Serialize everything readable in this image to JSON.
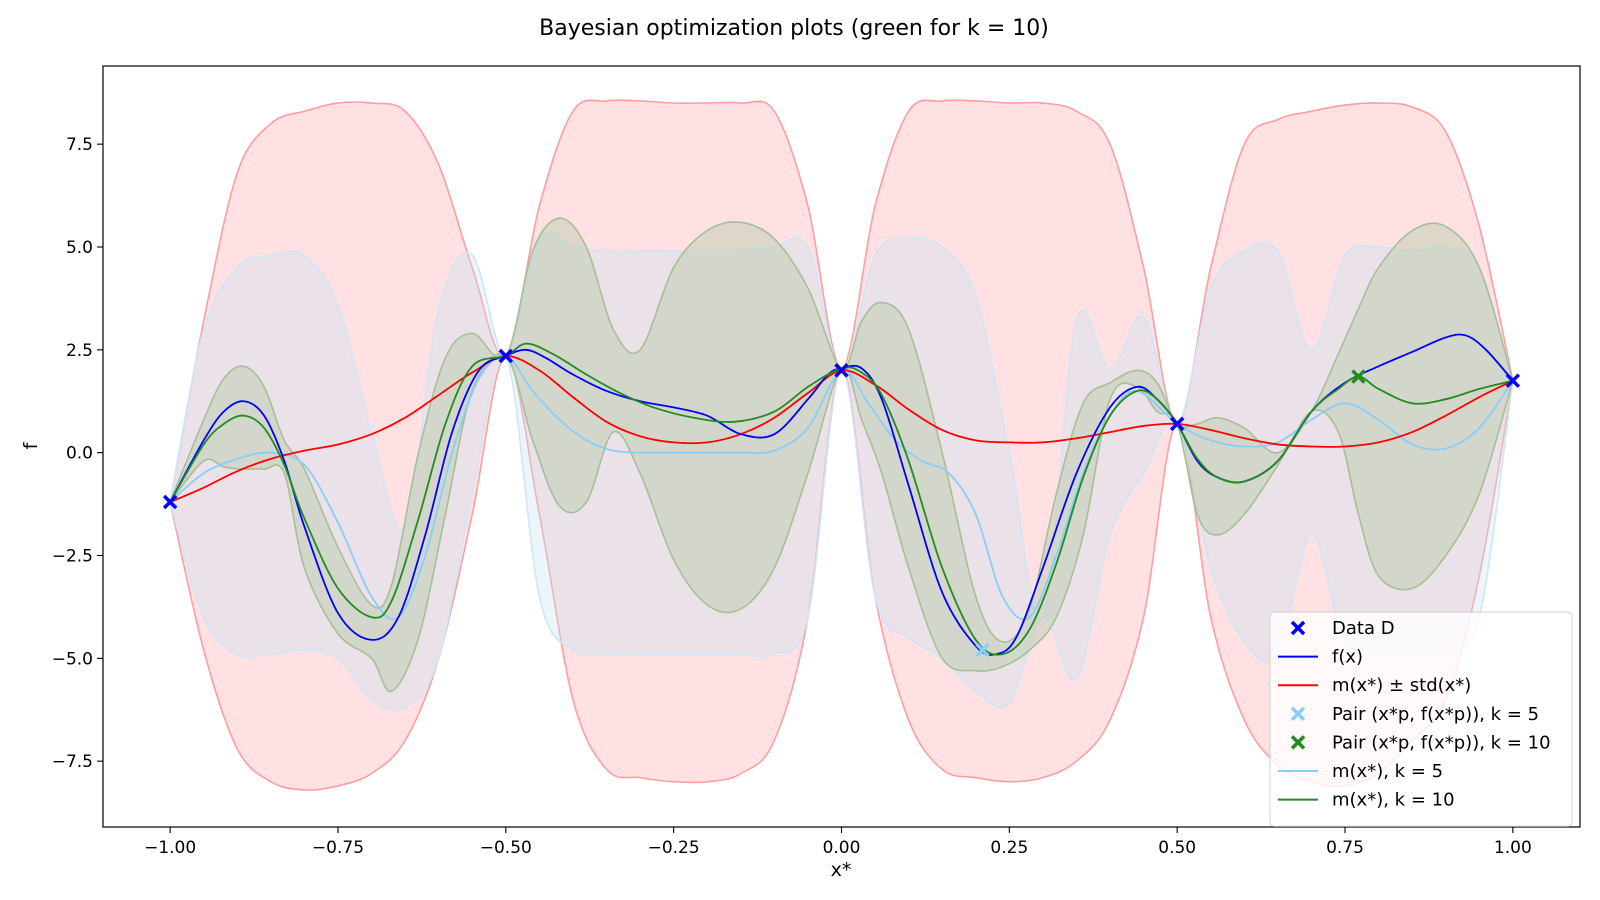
{
  "chart_data": {
    "type": "line",
    "title": "Bayesian optimization plots (green for k = 10)",
    "xlabel": "x*",
    "ylabel": "f",
    "xlim": [
      -1.1,
      1.1
    ],
    "ylim": [
      -9.1,
      9.4
    ],
    "xticks": [
      -1.0,
      -0.75,
      -0.5,
      -0.25,
      0.0,
      0.25,
      0.5,
      0.75,
      1.0
    ],
    "xtick_labels": [
      "−1.00",
      "−0.75",
      "−0.50",
      "−0.25",
      "0.00",
      "0.25",
      "0.50",
      "0.75",
      "1.00"
    ],
    "yticks": [
      -7.5,
      -5.0,
      -2.5,
      0.0,
      2.5,
      5.0,
      7.5
    ],
    "ytick_labels": [
      "−7.5",
      "−5.0",
      "−2.5",
      "0.0",
      "2.5",
      "5.0",
      "7.5"
    ],
    "grid": false,
    "legend_placement": "lower-right",
    "colors": {
      "data": "#0000ff",
      "f": "#0000ff",
      "mean": "#ff0000",
      "band": "#ffb3b8",
      "k5": "#87cefa",
      "k10": "#228b22"
    },
    "legend": [
      {
        "label": "Data D",
        "marker": "x",
        "color": "#0000ff"
      },
      {
        "label": "f(x)",
        "marker": "line",
        "color": "#0000ff"
      },
      {
        "label": "m(x*) ± std(x*)",
        "marker": "line",
        "color": "#ff0000"
      },
      {
        "label": "Pair (x*p, f(x*p)), k = 5",
        "marker": "x",
        "color": "#87cefa"
      },
      {
        "label": "Pair (x*p, f(x*p)), k = 10",
        "marker": "x",
        "color": "#228b22"
      },
      {
        "label": "m(x*), k = 5",
        "marker": "line",
        "color": "#87cefa"
      },
      {
        "label": "m(x*), k = 10",
        "marker": "line",
        "color": "#228b22"
      }
    ],
    "data_points": {
      "x": [
        -1.0,
        -0.5,
        0.0,
        0.5,
        1.0
      ],
      "y": [
        -1.2,
        2.35,
        2.0,
        0.7,
        1.75
      ]
    },
    "pair_k5": {
      "x": [
        0.21
      ],
      "y": [
        -4.8
      ]
    },
    "pair_k10": {
      "x": [
        0.77
      ],
      "y": [
        1.85
      ]
    },
    "series": [
      {
        "name": "f(x)",
        "x": [
          -1.0,
          -0.95,
          -0.92,
          -0.89,
          -0.86,
          -0.83,
          -0.8,
          -0.75,
          -0.7,
          -0.66,
          -0.62,
          -0.58,
          -0.54,
          -0.5,
          -0.47,
          -0.44,
          -0.4,
          -0.35,
          -0.3,
          -0.25,
          -0.2,
          -0.15,
          -0.1,
          -0.05,
          -0.02,
          0.0,
          0.03,
          0.06,
          0.1,
          0.15,
          0.2,
          0.23,
          0.26,
          0.3,
          0.35,
          0.4,
          0.44,
          0.47,
          0.5,
          0.53,
          0.56,
          0.6,
          0.65,
          0.7,
          0.75,
          0.8,
          0.85,
          0.9,
          0.93,
          0.96,
          1.0
        ],
        "y": [
          -1.2,
          0.3,
          1.0,
          1.25,
          0.9,
          -0.2,
          -1.8,
          -3.9,
          -4.55,
          -4.0,
          -2.0,
          0.5,
          2.0,
          2.35,
          2.5,
          2.3,
          1.9,
          1.5,
          1.25,
          1.1,
          0.9,
          0.45,
          0.45,
          1.3,
          1.9,
          2.05,
          2.05,
          1.3,
          -0.8,
          -3.4,
          -4.7,
          -4.9,
          -4.5,
          -2.8,
          -0.5,
          1.1,
          1.6,
          1.3,
          0.7,
          -0.2,
          -0.6,
          -0.7,
          -0.2,
          1.0,
          1.7,
          2.1,
          2.45,
          2.8,
          2.85,
          2.5,
          1.75
        ]
      },
      {
        "name": "m(x*) ± std(x*)",
        "x": [
          -1.0,
          -0.95,
          -0.9,
          -0.85,
          -0.8,
          -0.75,
          -0.7,
          -0.65,
          -0.6,
          -0.55,
          -0.5,
          -0.45,
          -0.4,
          -0.35,
          -0.3,
          -0.25,
          -0.2,
          -0.15,
          -0.1,
          -0.05,
          0.0,
          0.05,
          0.1,
          0.15,
          0.2,
          0.25,
          0.3,
          0.35,
          0.4,
          0.45,
          0.5,
          0.55,
          0.6,
          0.65,
          0.7,
          0.75,
          0.8,
          0.85,
          0.9,
          0.95,
          1.0
        ],
        "y": [
          -1.2,
          -0.85,
          -0.45,
          -0.15,
          0.05,
          0.2,
          0.45,
          0.85,
          1.4,
          1.95,
          2.35,
          2.0,
          1.35,
          0.75,
          0.4,
          0.25,
          0.25,
          0.45,
          0.85,
          1.45,
          2.0,
          1.65,
          1.05,
          0.55,
          0.3,
          0.25,
          0.25,
          0.35,
          0.5,
          0.65,
          0.7,
          0.55,
          0.35,
          0.2,
          0.15,
          0.15,
          0.25,
          0.5,
          0.9,
          1.35,
          1.75
        ],
        "upper": [
          -1.2,
          3.2,
          6.8,
          8.0,
          8.3,
          8.5,
          8.5,
          8.3,
          7.0,
          4.5,
          2.35,
          6.0,
          8.3,
          8.55,
          8.55,
          8.5,
          8.5,
          8.5,
          8.3,
          6.0,
          2.05,
          6.0,
          8.3,
          8.55,
          8.55,
          8.5,
          8.5,
          8.3,
          7.5,
          4.5,
          0.7,
          4.5,
          7.5,
          8.1,
          8.3,
          8.45,
          8.5,
          8.4,
          7.8,
          5.5,
          1.75
        ],
        "lower": [
          -1.2,
          -4.8,
          -7.2,
          -8.0,
          -8.2,
          -8.1,
          -7.8,
          -7.0,
          -5.0,
          -1.5,
          2.35,
          -1.5,
          -6.0,
          -7.7,
          -7.9,
          -8.0,
          -8.0,
          -7.8,
          -7.0,
          -4.0,
          2.05,
          -3.5,
          -6.5,
          -7.7,
          -7.9,
          -8.0,
          -7.9,
          -7.5,
          -6.5,
          -4.0,
          0.7,
          -4.0,
          -6.5,
          -7.6,
          -8.0,
          -8.1,
          -7.8,
          -7.0,
          -6.0,
          -3.0,
          1.75
        ]
      },
      {
        "name": "m(x*), k = 5",
        "x": [
          -1.0,
          -0.95,
          -0.9,
          -0.85,
          -0.8,
          -0.75,
          -0.7,
          -0.66,
          -0.62,
          -0.58,
          -0.54,
          -0.5,
          -0.46,
          -0.42,
          -0.38,
          -0.34,
          -0.3,
          -0.25,
          -0.2,
          -0.15,
          -0.1,
          -0.05,
          0.0,
          0.04,
          0.08,
          0.12,
          0.16,
          0.2,
          0.24,
          0.28,
          0.32,
          0.36,
          0.4,
          0.44,
          0.5,
          0.55,
          0.6,
          0.65,
          0.7,
          0.75,
          0.8,
          0.85,
          0.9,
          0.95,
          1.0
        ],
        "y": [
          -1.2,
          -0.5,
          -0.15,
          0.0,
          -0.3,
          -1.7,
          -3.5,
          -4.0,
          -2.5,
          0.0,
          1.8,
          2.35,
          1.5,
          0.8,
          0.3,
          0.05,
          0.0,
          0.0,
          0.0,
          0.0,
          0.05,
          0.6,
          2.0,
          1.2,
          0.3,
          -0.2,
          -0.5,
          -1.5,
          -3.5,
          -4.0,
          -2.5,
          -0.5,
          0.9,
          1.5,
          0.7,
          0.3,
          0.15,
          0.25,
          0.8,
          1.2,
          0.8,
          0.2,
          0.1,
          0.6,
          1.75
        ]
      },
      {
        "name": "m(x*), k = 10",
        "x": [
          -1.0,
          -0.95,
          -0.92,
          -0.89,
          -0.86,
          -0.83,
          -0.8,
          -0.75,
          -0.7,
          -0.67,
          -0.63,
          -0.59,
          -0.55,
          -0.5,
          -0.47,
          -0.43,
          -0.38,
          -0.33,
          -0.28,
          -0.22,
          -0.16,
          -0.1,
          -0.05,
          0.0,
          0.03,
          0.06,
          0.1,
          0.15,
          0.2,
          0.24,
          0.28,
          0.32,
          0.36,
          0.4,
          0.44,
          0.47,
          0.5,
          0.53,
          0.56,
          0.6,
          0.65,
          0.7,
          0.74,
          0.77,
          0.8,
          0.85,
          0.9,
          0.95,
          1.0
        ],
        "y": [
          -1.2,
          0.2,
          0.7,
          0.9,
          0.6,
          -0.3,
          -1.6,
          -3.3,
          -4.0,
          -3.6,
          -1.6,
          0.7,
          2.1,
          2.35,
          2.65,
          2.4,
          1.9,
          1.45,
          1.1,
          0.85,
          0.75,
          1.0,
          1.6,
          2.05,
          1.95,
          1.4,
          -0.2,
          -2.8,
          -4.55,
          -4.9,
          -4.3,
          -2.7,
          -0.6,
          0.9,
          1.5,
          1.3,
          0.7,
          -0.15,
          -0.6,
          -0.7,
          -0.2,
          1.0,
          1.55,
          1.85,
          1.55,
          1.2,
          1.3,
          1.55,
          1.75
        ]
      },
      {
        "name": "std band, k = 5",
        "x": [
          -1.0,
          -0.95,
          -0.9,
          -0.85,
          -0.8,
          -0.75,
          -0.7,
          -0.65,
          -0.6,
          -0.55,
          -0.5,
          -0.45,
          -0.4,
          -0.35,
          -0.3,
          -0.25,
          -0.2,
          -0.15,
          -0.1,
          -0.05,
          0.0,
          0.05,
          0.1,
          0.15,
          0.2,
          0.25,
          0.3,
          0.35,
          0.4,
          0.45,
          0.5,
          0.55,
          0.6,
          0.65,
          0.7,
          0.75,
          0.8,
          0.85,
          0.9,
          0.95,
          1.0
        ],
        "upper": [
          -1.2,
          3.0,
          4.5,
          4.8,
          4.8,
          3.6,
          0.5,
          -1.8,
          3.5,
          4.8,
          2.35,
          5.2,
          5.0,
          4.9,
          4.9,
          4.9,
          4.9,
          4.9,
          5.0,
          5.0,
          2.0,
          4.8,
          5.2,
          5.0,
          3.8,
          0.0,
          -4.0,
          3.2,
          2.0,
          3.3,
          0.7,
          4.0,
          4.9,
          4.9,
          2.5,
          4.8,
          5.0,
          4.9,
          5.0,
          4.5,
          1.75
        ],
        "lower": [
          -1.2,
          -4.0,
          -4.9,
          -4.9,
          -4.8,
          -5.0,
          -6.0,
          -6.2,
          -5.0,
          -1.0,
          2.35,
          -3.5,
          -4.8,
          -4.9,
          -4.9,
          -4.9,
          -4.9,
          -4.9,
          -4.9,
          -4.0,
          2.0,
          -3.5,
          -4.5,
          -5.0,
          -5.8,
          -6.1,
          -4.0,
          -5.5,
          -2.0,
          -0.5,
          0.7,
          -2.8,
          -4.6,
          -4.9,
          -2.0,
          -4.7,
          -4.9,
          -4.9,
          -4.8,
          -4.0,
          1.75
        ]
      },
      {
        "name": "std band, k = 10",
        "x": [
          -1.0,
          -0.95,
          -0.92,
          -0.89,
          -0.86,
          -0.83,
          -0.8,
          -0.75,
          -0.7,
          -0.67,
          -0.63,
          -0.59,
          -0.55,
          -0.5,
          -0.46,
          -0.42,
          -0.38,
          -0.34,
          -0.3,
          -0.25,
          -0.2,
          -0.15,
          -0.1,
          -0.05,
          0.0,
          0.03,
          0.06,
          0.1,
          0.15,
          0.2,
          0.24,
          0.28,
          0.32,
          0.36,
          0.4,
          0.44,
          0.47,
          0.5,
          0.53,
          0.56,
          0.6,
          0.65,
          0.7,
          0.74,
          0.77,
          0.8,
          0.85,
          0.9,
          0.95,
          1.0
        ],
        "upper": [
          -1.2,
          0.8,
          1.8,
          2.1,
          1.6,
          0.3,
          -0.4,
          -2.3,
          -3.7,
          -3.2,
          0.0,
          2.3,
          2.9,
          2.35,
          4.9,
          5.7,
          5.0,
          3.0,
          2.5,
          4.5,
          5.4,
          5.6,
          5.2,
          4.0,
          2.05,
          3.2,
          3.65,
          3.0,
          0.0,
          -3.5,
          -4.6,
          -3.8,
          -1.0,
          1.2,
          1.7,
          2.0,
          1.7,
          0.7,
          0.7,
          0.85,
          0.6,
          0.0,
          1.0,
          2.4,
          3.5,
          4.5,
          5.4,
          5.5,
          4.5,
          1.75
        ],
        "lower": [
          -1.2,
          -0.2,
          -0.35,
          -0.4,
          -0.4,
          -0.5,
          -2.8,
          -4.4,
          -5.0,
          -5.8,
          -4.5,
          -1.5,
          1.5,
          2.35,
          0.3,
          -1.3,
          -1.2,
          0.5,
          -0.5,
          -2.6,
          -3.7,
          -3.8,
          -2.8,
          -0.5,
          2.05,
          0.8,
          -0.5,
          -2.8,
          -5.0,
          -5.3,
          -5.2,
          -4.8,
          -4.0,
          -2.0,
          1.3,
          1.6,
          1.0,
          0.7,
          -1.5,
          -2.0,
          -1.5,
          -0.3,
          1.0,
          0.5,
          -1.5,
          -3.0,
          -3.3,
          -2.5,
          -1.0,
          1.75
        ]
      }
    ]
  }
}
